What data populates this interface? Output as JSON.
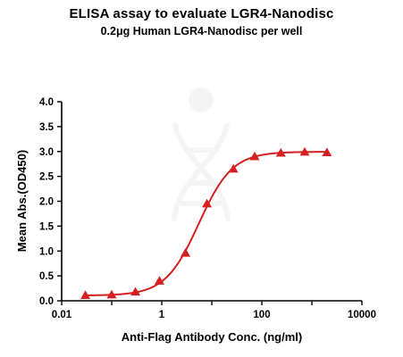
{
  "chart_data": {
    "type": "scatter",
    "title": "ELISA assay to evaluate LGR4-Nanodisc",
    "subtitle": "0.2μg Human LGR4-Nanodisc per well",
    "xlabel": "Anti-Flag Antibody Conc. (ng/ml)",
    "ylabel": "Mean Abs.(OD450)",
    "x_scale": "log",
    "xlim": [
      0.01,
      10000
    ],
    "ylim": [
      0.0,
      4.0
    ],
    "x_ticks": [
      "0.01",
      "1",
      "100",
      "10000"
    ],
    "y_ticks": [
      "0.0",
      "0.5",
      "1.0",
      "1.5",
      "2.0",
      "2.5",
      "3.0",
      "3.5",
      "4.0"
    ],
    "grid": false,
    "legend": "none",
    "series": [
      {
        "marker": "triangle",
        "color": "#d42020",
        "fit": "4PL sigmoid",
        "points": [
          {
            "x": 0.0298,
            "y": 0.11
          },
          {
            "x": 0.1,
            "y": 0.12
          },
          {
            "x": 0.298,
            "y": 0.18
          },
          {
            "x": 0.9,
            "y": 0.4
          },
          {
            "x": 2.98,
            "y": 0.96
          },
          {
            "x": 8.0,
            "y": 1.95
          },
          {
            "x": 27.0,
            "y": 2.65
          },
          {
            "x": 72.0,
            "y": 2.9
          },
          {
            "x": 240.0,
            "y": 2.97
          },
          {
            "x": 720.0,
            "y": 2.99
          },
          {
            "x": 2000.0,
            "y": 2.98
          }
        ]
      }
    ]
  }
}
